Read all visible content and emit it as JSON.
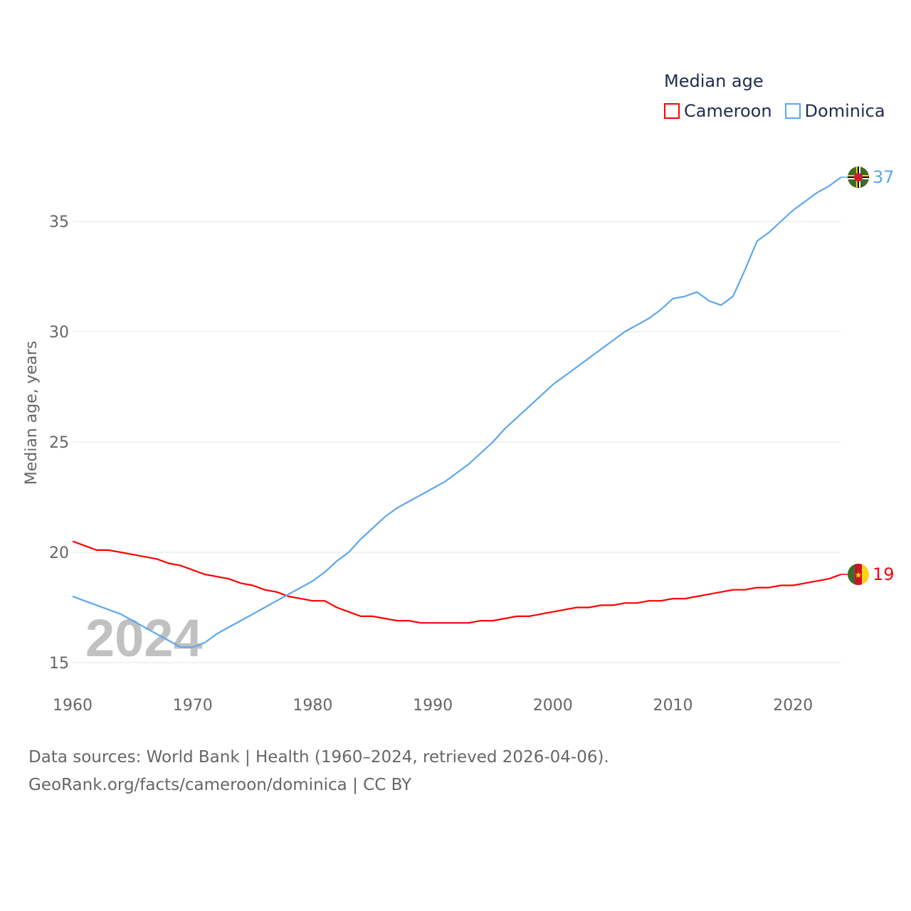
{
  "chart_data": {
    "type": "line",
    "title": "Median age",
    "xlabel": "",
    "ylabel": "Median age, years",
    "xlim": [
      1960,
      2024
    ],
    "ylim": [
      15,
      37.5
    ],
    "x_ticks": [
      1960,
      1970,
      1980,
      1990,
      2000,
      2010,
      2020
    ],
    "y_ticks": [
      15,
      20,
      25,
      30,
      35
    ],
    "grid": true,
    "legend_placement": "top-right",
    "year_watermark": "2024",
    "x": [
      1960,
      1961,
      1962,
      1963,
      1964,
      1965,
      1966,
      1967,
      1968,
      1969,
      1970,
      1971,
      1972,
      1973,
      1974,
      1975,
      1976,
      1977,
      1978,
      1979,
      1980,
      1981,
      1982,
      1983,
      1984,
      1985,
      1986,
      1987,
      1988,
      1989,
      1990,
      1991,
      1992,
      1993,
      1994,
      1995,
      1996,
      1997,
      1998,
      1999,
      2000,
      2001,
      2002,
      2003,
      2004,
      2005,
      2006,
      2007,
      2008,
      2009,
      2010,
      2011,
      2012,
      2013,
      2014,
      2015,
      2016,
      2017,
      2018,
      2019,
      2020,
      2021,
      2022,
      2023,
      2024
    ],
    "series": [
      {
        "name": "Cameroon",
        "color": "#ff0000",
        "end_label": "19",
        "values": [
          20.5,
          20.3,
          20.1,
          20.1,
          20.0,
          19.9,
          19.8,
          19.7,
          19.5,
          19.4,
          19.2,
          19.0,
          18.9,
          18.8,
          18.6,
          18.5,
          18.3,
          18.2,
          18.0,
          17.9,
          17.8,
          17.8,
          17.5,
          17.3,
          17.1,
          17.1,
          17.0,
          16.9,
          16.9,
          16.8,
          16.8,
          16.8,
          16.8,
          16.8,
          16.9,
          16.9,
          17.0,
          17.1,
          17.1,
          17.2,
          17.3,
          17.4,
          17.5,
          17.5,
          17.6,
          17.6,
          17.7,
          17.7,
          17.8,
          17.8,
          17.9,
          17.9,
          18.0,
          18.1,
          18.2,
          18.3,
          18.3,
          18.4,
          18.4,
          18.5,
          18.5,
          18.6,
          18.7,
          18.8,
          19.0
        ]
      },
      {
        "name": "Dominica",
        "color": "#5ba7ee",
        "end_label": "37",
        "values": [
          18.0,
          17.8,
          17.6,
          17.4,
          17.2,
          16.9,
          16.6,
          16.3,
          16.0,
          15.7,
          15.7,
          15.9,
          16.3,
          16.6,
          16.9,
          17.2,
          17.5,
          17.8,
          18.1,
          18.4,
          18.7,
          19.1,
          19.6,
          20.0,
          20.6,
          21.1,
          21.6,
          22.0,
          22.3,
          22.6,
          22.9,
          23.2,
          23.6,
          24.0,
          24.5,
          25.0,
          25.6,
          26.1,
          26.6,
          27.1,
          27.6,
          28.0,
          28.4,
          28.8,
          29.2,
          29.6,
          30.0,
          30.3,
          30.6,
          31.0,
          31.5,
          31.6,
          31.8,
          31.4,
          31.2,
          31.6,
          32.8,
          34.1,
          34.5,
          35.0,
          35.5,
          35.9,
          36.3,
          36.6,
          37.0
        ]
      }
    ]
  },
  "legend": {
    "title": "Median age",
    "items": [
      "Cameroon",
      "Dominica"
    ]
  },
  "source": {
    "line1": "Data sources: World Bank | Health (1960–2024, retrieved 2026-04-06).",
    "line2": "GeoRank.org/facts/cameroon/dominica | CC BY"
  }
}
